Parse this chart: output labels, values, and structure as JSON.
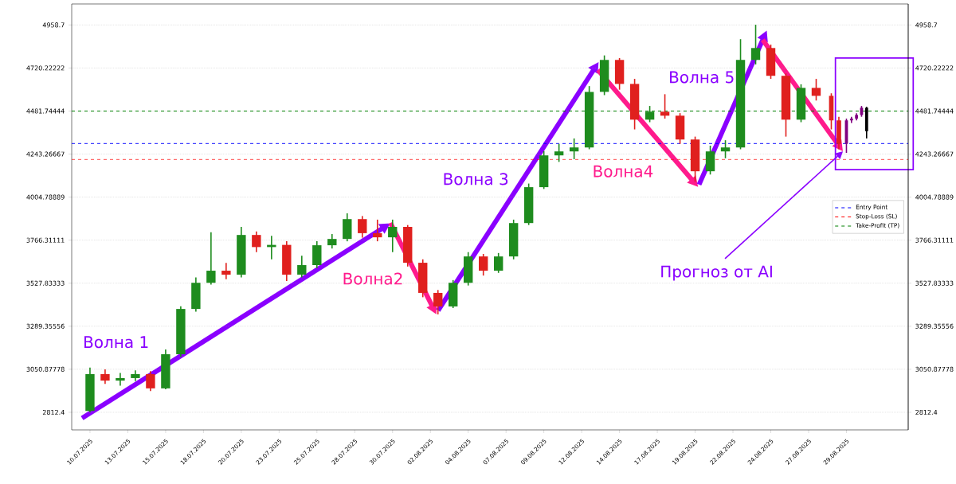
{
  "chart_data": {
    "type": "candlestick",
    "xlim": [
      "2025-07-09T07:00",
      "2025-09-02T14:00"
    ],
    "xticks": [
      {
        "value": "2025-07-10T12:00",
        "label": "10.07.2025"
      },
      {
        "value": "2025-07-13T00:00",
        "label": "13.07.2025"
      },
      {
        "value": "2025-07-15T12:00",
        "label": "15.07.2025"
      },
      {
        "value": "2025-07-18T00:00",
        "label": "18.07.2025"
      },
      {
        "value": "2025-07-20T12:00",
        "label": "20.07.2025"
      },
      {
        "value": "2025-07-23T00:00",
        "label": "23.07.2025"
      },
      {
        "value": "2025-07-25T12:00",
        "label": "25.07.2025"
      },
      {
        "value": "2025-07-28T00:00",
        "label": "28.07.2025"
      },
      {
        "value": "2025-07-30T12:00",
        "label": "30.07.2025"
      },
      {
        "value": "2025-08-02T00:00",
        "label": "02.08.2025"
      },
      {
        "value": "2025-08-04T12:00",
        "label": "04.08.2025"
      },
      {
        "value": "2025-08-07T00:00",
        "label": "07.08.2025"
      },
      {
        "value": "2025-08-09T12:00",
        "label": "09.08.2025"
      },
      {
        "value": "2025-08-12T00:00",
        "label": "12.08.2025"
      },
      {
        "value": "2025-08-14T12:00",
        "label": "14.08.2025"
      },
      {
        "value": "2025-08-17T00:00",
        "label": "17.08.2025"
      },
      {
        "value": "2025-08-19T12:00",
        "label": "19.08.2025"
      },
      {
        "value": "2025-08-22T00:00",
        "label": "22.08.2025"
      },
      {
        "value": "2025-08-24T12:00",
        "label": "24.08.2025"
      },
      {
        "value": "2025-08-27T00:00",
        "label": "27.08.2025"
      },
      {
        "value": "2025-08-29T12:00",
        "label": "29.08.2025"
      }
    ],
    "ylim": [
      2715,
      5075
    ],
    "yticks": [
      2812.4,
      3050.87778,
      3289.35556,
      3527.83333,
      3766.31111,
      4004.78889,
      4243.26667,
      4481.74444,
      4720.22222,
      4958.7
    ],
    "y2lim": [
      2715,
      5075
    ],
    "y2ticks": [
      2812.4,
      3050.87778,
      3289.35556,
      3527.83333,
      3766.31111,
      4004.78889,
      4243.26667,
      4481.74444,
      4720.22222,
      4958.7
    ],
    "grid": "y",
    "legend": "right",
    "series": [
      {
        "color": "#1e8c1e",
        "x": [
          "2025-07-10T12:00",
          "2025-07-12T12:00",
          "2025-07-13T12:00",
          "2025-07-15T12:00",
          "2025-07-16T12:00",
          "2025-07-17T12:00",
          "2025-07-18T12:00",
          "2025-07-20T12:00",
          "2025-07-22T12:00",
          "2025-07-24T12:00",
          "2025-07-25T12:00",
          "2025-07-26T12:00",
          "2025-07-27T12:00",
          "2025-07-30T12:00",
          "2025-08-03T12:00",
          "2025-08-04T12:00",
          "2025-08-06T12:00",
          "2025-08-07T12:00",
          "2025-08-08T12:00",
          "2025-08-09T12:00",
          "2025-08-10T12:00",
          "2025-08-11T12:00",
          "2025-08-12T12:00",
          "2025-08-13T12:00",
          "2025-08-16T12:00",
          "2025-08-20T12:00",
          "2025-08-21T12:00",
          "2025-08-22T12:00",
          "2025-08-23T12:00",
          "2025-08-26T12:00"
        ],
        "ohlc": [
          [
            2820,
            3060,
            2812,
            3024
          ],
          [
            2988,
            3030,
            2960,
            3002
          ],
          [
            3002,
            3045,
            2985,
            3024
          ],
          [
            2945,
            3160,
            2940,
            3134
          ],
          [
            3134,
            3400,
            3120,
            3385
          ],
          [
            3385,
            3560,
            3370,
            3530
          ],
          [
            3530,
            3810,
            3520,
            3597
          ],
          [
            3575,
            3840,
            3560,
            3795
          ],
          [
            3728,
            3790,
            3660,
            3740
          ],
          [
            3575,
            3680,
            3560,
            3628
          ],
          [
            3628,
            3760,
            3610,
            3738
          ],
          [
            3738,
            3800,
            3720,
            3773
          ],
          [
            3773,
            3915,
            3760,
            3883
          ],
          [
            3782,
            3880,
            3700,
            3840
          ],
          [
            3399,
            3545,
            3390,
            3530
          ],
          [
            3530,
            3700,
            3515,
            3676
          ],
          [
            3597,
            3695,
            3585,
            3676
          ],
          [
            3676,
            3880,
            3660,
            3861
          ],
          [
            3861,
            4080,
            3850,
            4060
          ],
          [
            4060,
            4260,
            4050,
            4236
          ],
          [
            4236,
            4300,
            4200,
            4258
          ],
          [
            4258,
            4330,
            4215,
            4280
          ],
          [
            4280,
            4620,
            4270,
            4588
          ],
          [
            4588,
            4790,
            4570,
            4765
          ],
          [
            4434,
            4510,
            4420,
            4478
          ],
          [
            4148,
            4290,
            4130,
            4258
          ],
          [
            4258,
            4320,
            4220,
            4280
          ],
          [
            4280,
            4880,
            4270,
            4765
          ],
          [
            4765,
            4960,
            4740,
            4831
          ],
          [
            4434,
            4630,
            4420,
            4610
          ]
        ]
      },
      {
        "color": "#e0201e",
        "x": [
          "2025-07-11T12:00",
          "2025-07-14T12:00",
          "2025-07-19T12:00",
          "2025-07-21T12:00",
          "2025-07-23T12:00",
          "2025-07-28T12:00",
          "2025-07-29T12:00",
          "2025-07-31T12:00",
          "2025-08-01T12:00",
          "2025-08-02T12:00",
          "2025-08-05T12:00",
          "2025-08-14T12:00",
          "2025-08-15T12:00",
          "2025-08-17T12:00",
          "2025-08-18T12:00",
          "2025-08-19T12:00",
          "2025-08-24T12:00",
          "2025-08-25T12:00",
          "2025-08-27T12:00",
          "2025-08-28T12:00",
          "2025-08-29T00:00"
        ],
        "ohlc": [
          [
            3024,
            3050,
            2970,
            2988
          ],
          [
            3024,
            3040,
            2930,
            2945
          ],
          [
            3597,
            3640,
            3550,
            3575
          ],
          [
            3795,
            3815,
            3700,
            3728
          ],
          [
            3740,
            3760,
            3540,
            3575
          ],
          [
            3883,
            3900,
            3780,
            3805
          ],
          [
            3805,
            3880,
            3760,
            3782
          ],
          [
            3840,
            3850,
            3620,
            3641
          ],
          [
            3641,
            3660,
            3450,
            3474
          ],
          [
            3474,
            3490,
            3355,
            3399
          ],
          [
            3676,
            3690,
            3570,
            3597
          ],
          [
            4765,
            4775,
            4600,
            4632
          ],
          [
            4632,
            4660,
            4380,
            4434
          ],
          [
            4478,
            4575,
            4440,
            4456
          ],
          [
            4456,
            4470,
            4300,
            4324
          ],
          [
            4324,
            4340,
            4090,
            4148
          ],
          [
            4831,
            4850,
            4660,
            4677
          ],
          [
            4677,
            4690,
            4340,
            4434
          ],
          [
            4610,
            4660,
            4540,
            4566
          ],
          [
            4566,
            4580,
            4380,
            4430
          ],
          [
            4430,
            4450,
            4270,
            4300
          ]
        ]
      },
      {
        "color": "#800080",
        "x": [
          "2025-08-29T12:00",
          "2025-08-29T20:00",
          "2025-08-30T04:00",
          "2025-08-30T12:00"
        ],
        "ohlc": [
          [
            4300,
            4440,
            4250,
            4430
          ],
          [
            4430,
            4450,
            4415,
            4440
          ],
          [
            4440,
            4470,
            4430,
            4460
          ],
          [
            4460,
            4510,
            4450,
            4500
          ]
        ]
      },
      {
        "color": "#000000",
        "x": [
          "2025-08-30T20:00"
        ],
        "ohlc": [
          [
            4500,
            4505,
            4330,
            4370
          ]
        ]
      }
    ],
    "ref_lines": [
      {
        "axis": "y",
        "value": 4302,
        "label": "Entry Point",
        "color": "#0000ff",
        "line_style": "dashed"
      },
      {
        "axis": "y",
        "value": 4214,
        "label": "Stop-Loss (SL)",
        "color": "#ff0000",
        "line_style": "dashed"
      },
      {
        "axis": "y",
        "value": 4482,
        "label": "Take-Profit (TP)",
        "color": "#008000",
        "line_style": "dashed"
      }
    ],
    "annotations": [
      "Волна 1",
      "Волна2",
      "Волна 3",
      "Волна4",
      "Волна 5",
      "Прогноз от AI"
    ]
  }
}
